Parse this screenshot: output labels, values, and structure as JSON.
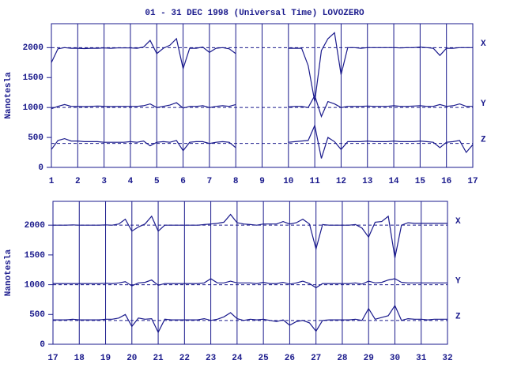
{
  "chart_data": [
    {
      "type": "line",
      "title": "01 - 31 DEC 1998 (Universal Time) LOVOZERO",
      "y_label": "Nanotesla",
      "x": [
        1,
        1.25,
        1.5,
        1.75,
        2,
        2.25,
        2.5,
        2.75,
        3,
        3.25,
        3.5,
        3.75,
        4,
        4.25,
        4.5,
        4.75,
        5,
        5.25,
        5.5,
        5.75,
        6,
        6.25,
        6.5,
        6.75,
        7,
        7.25,
        7.5,
        7.75,
        8,
        8.25,
        8.5,
        8.75,
        9,
        9.25,
        9.5,
        9.75,
        10,
        10.25,
        10.5,
        10.75,
        11,
        11.25,
        11.5,
        11.75,
        12,
        12.25,
        12.5,
        12.75,
        13,
        13.25,
        13.5,
        13.75,
        14,
        14.25,
        14.5,
        14.75,
        15,
        15.25,
        15.5,
        15.75,
        16,
        16.25,
        16.5,
        16.75,
        17
      ],
      "xlim": [
        1,
        17
      ],
      "xticks": [
        1,
        2,
        3,
        4,
        5,
        6,
        7,
        8,
        9,
        10,
        11,
        12,
        13,
        14,
        15,
        16,
        17
      ],
      "ylim": [
        0,
        2400
      ],
      "yticks": [
        0,
        500,
        1000,
        1500,
        2000
      ],
      "grid": true,
      "series": [
        {
          "name": "X",
          "color": "#1a1a8c",
          "baseline": 2000,
          "values": [
            1750,
            1980,
            2000,
            1990,
            1990,
            1985,
            1990,
            1990,
            1995,
            1990,
            1995,
            1995,
            1995,
            1990,
            2010,
            2120,
            1900,
            1990,
            2040,
            2150,
            1650,
            1990,
            1990,
            2010,
            1920,
            1990,
            2000,
            1980,
            1900,
            null,
            null,
            null,
            null,
            null,
            null,
            null,
            1990,
            1990,
            1990,
            1700,
            1100,
            1950,
            2150,
            2250,
            1550,
            2000,
            2000,
            1990,
            2000,
            2000,
            2000,
            2000,
            2000,
            1995,
            2000,
            2000,
            2010,
            2000,
            1990,
            1870,
            1990,
            1990,
            2000,
            2000,
            2000
          ]
        },
        {
          "name": "Y",
          "color": "#1a1a8c",
          "baseline": 1000,
          "values": [
            980,
            1020,
            1050,
            1020,
            1020,
            1015,
            1020,
            1025,
            1020,
            1015,
            1020,
            1020,
            1020,
            1020,
            1030,
            1060,
            1000,
            1020,
            1040,
            1080,
            990,
            1020,
            1020,
            1030,
            1000,
            1020,
            1030,
            1020,
            1050,
            null,
            null,
            null,
            null,
            null,
            null,
            null,
            1010,
            1020,
            1020,
            1000,
            1200,
            850,
            1100,
            1060,
            1000,
            1020,
            1020,
            1020,
            1025,
            1020,
            1020,
            1020,
            1030,
            1020,
            1020,
            1025,
            1030,
            1020,
            1020,
            1050,
            1020,
            1030,
            1060,
            1020,
            1020
          ]
        },
        {
          "name": "Z",
          "color": "#1a1a8c",
          "baseline": 400,
          "values": [
            300,
            450,
            480,
            440,
            440,
            430,
            430,
            430,
            420,
            420,
            420,
            420,
            430,
            420,
            440,
            360,
            420,
            430,
            420,
            450,
            280,
            420,
            430,
            430,
            400,
            420,
            430,
            420,
            330,
            null,
            null,
            null,
            null,
            null,
            null,
            null,
            420,
            430,
            440,
            450,
            700,
            150,
            500,
            430,
            300,
            430,
            430,
            430,
            440,
            430,
            430,
            430,
            440,
            430,
            430,
            430,
            440,
            430,
            420,
            330,
            420,
            430,
            450,
            250,
            380
          ]
        }
      ]
    },
    {
      "type": "line",
      "y_label": "Nanotesla",
      "x": [
        17,
        17.25,
        17.5,
        17.75,
        18,
        18.25,
        18.5,
        18.75,
        19,
        19.25,
        19.5,
        19.75,
        20,
        20.25,
        20.5,
        20.75,
        21,
        21.25,
        21.5,
        21.75,
        22,
        22.25,
        22.5,
        22.75,
        23,
        23.25,
        23.5,
        23.75,
        24,
        24.25,
        24.5,
        24.75,
        25,
        25.25,
        25.5,
        25.75,
        26,
        26.25,
        26.5,
        26.75,
        27,
        27.25,
        27.5,
        27.75,
        28,
        28.25,
        28.5,
        28.75,
        29,
        29.25,
        29.5,
        29.75,
        30,
        30.25,
        30.5,
        30.75,
        31,
        31.25,
        31.5,
        31.75,
        32
      ],
      "xlim": [
        17,
        32
      ],
      "xticks": [
        17,
        18,
        19,
        20,
        21,
        22,
        23,
        24,
        25,
        26,
        27,
        28,
        29,
        30,
        31,
        32
      ],
      "ylim": [
        0,
        2400
      ],
      "yticks": [
        0,
        500,
        1000,
        1500,
        2000
      ],
      "grid": true,
      "series": [
        {
          "name": "X",
          "color": "#1a1a8c",
          "baseline": 2000,
          "values": [
            2000,
            2000,
            2000,
            2005,
            2000,
            2000,
            2000,
            2000,
            2005,
            2000,
            2020,
            2100,
            1900,
            1970,
            2020,
            2150,
            1900,
            2000,
            2000,
            2000,
            2000,
            2000,
            2000,
            2010,
            2020,
            2030,
            2050,
            2180,
            2040,
            2020,
            2010,
            2000,
            2020,
            2020,
            2020,
            2060,
            2020,
            2040,
            2100,
            2020,
            1600,
            2010,
            2000,
            2000,
            2000,
            2000,
            2010,
            1950,
            1800,
            2050,
            2060,
            2150,
            1450,
            2000,
            2040,
            2030,
            2030,
            2030,
            2030,
            2030,
            2030
          ]
        },
        {
          "name": "Y",
          "color": "#1a1a8c",
          "baseline": 1000,
          "values": [
            1020,
            1020,
            1020,
            1020,
            1020,
            1020,
            1020,
            1020,
            1025,
            1020,
            1030,
            1050,
            980,
            1030,
            1040,
            1080,
            990,
            1020,
            1020,
            1020,
            1020,
            1020,
            1020,
            1030,
            1100,
            1030,
            1030,
            1060,
            1030,
            1030,
            1030,
            1020,
            1040,
            1020,
            1020,
            1040,
            1010,
            1030,
            1060,
            1020,
            950,
            1020,
            1020,
            1020,
            1020,
            1020,
            1030,
            1010,
            1060,
            1030,
            1040,
            1080,
            1100,
            1040,
            1030,
            1030,
            1030,
            1030,
            1030,
            1030,
            1030
          ]
        },
        {
          "name": "Z",
          "color": "#1a1a8c",
          "baseline": 400,
          "values": [
            410,
            410,
            410,
            420,
            410,
            410,
            410,
            410,
            420,
            420,
            440,
            500,
            300,
            440,
            420,
            430,
            200,
            420,
            410,
            410,
            410,
            410,
            410,
            430,
            400,
            420,
            460,
            530,
            430,
            400,
            420,
            410,
            420,
            400,
            380,
            410,
            320,
            380,
            400,
            360,
            220,
            400,
            410,
            410,
            410,
            410,
            420,
            400,
            600,
            420,
            450,
            480,
            650,
            400,
            430,
            420,
            420,
            410,
            420,
            420,
            420
          ]
        }
      ]
    }
  ]
}
